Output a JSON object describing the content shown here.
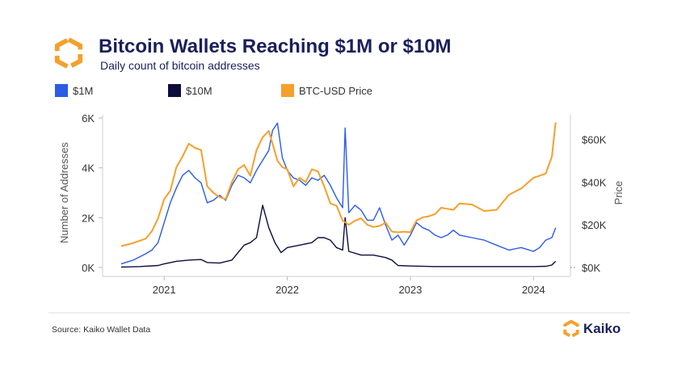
{
  "header": {
    "title": "Bitcoin Wallets Reaching $1M or $10M",
    "subtitle": "Daily count of bitcoin addresses"
  },
  "footer": {
    "source": "Source: Kaiko Wallet Data",
    "brand": "Kaiko"
  },
  "icons": {
    "logo": "kaiko-hexagon-logo-icon"
  },
  "colors": {
    "m1": "#2b5ce6",
    "m10": "#0d0d3d",
    "price": "#f5a02c",
    "title": "#1a1f5c"
  },
  "chart_data": {
    "type": "line",
    "title": "Bitcoin Wallets Reaching $1M or $10M",
    "subtitle": "Daily count of bitcoin addresses",
    "ylabel": "Number of Addresses",
    "y2label": "Price",
    "ylim": [
      0,
      6000
    ],
    "y2lim": [
      0,
      70000
    ],
    "yticks": [
      "0K",
      "2K",
      "4K",
      "6K"
    ],
    "y2ticks": [
      "$0K",
      "$20K",
      "$40K",
      "$60K"
    ],
    "xticks": [
      "2021",
      "2022",
      "2023",
      "2024"
    ],
    "xlim": [
      2020.5,
      2024.3
    ],
    "legend_position": "top-left",
    "grid": false,
    "series": [
      {
        "name": "$1M",
        "axis": "left",
        "x": [
          2020.65,
          2020.75,
          2020.85,
          2020.9,
          2020.95,
          2021.0,
          2021.05,
          2021.1,
          2021.15,
          2021.2,
          2021.25,
          2021.3,
          2021.35,
          2021.4,
          2021.45,
          2021.5,
          2021.55,
          2021.6,
          2021.65,
          2021.7,
          2021.75,
          2021.8,
          2021.85,
          2021.88,
          2021.92,
          2021.96,
          2022.0,
          2022.05,
          2022.1,
          2022.15,
          2022.2,
          2022.25,
          2022.3,
          2022.35,
          2022.4,
          2022.45,
          2022.47,
          2022.5,
          2022.55,
          2022.6,
          2022.65,
          2022.7,
          2022.75,
          2022.8,
          2022.85,
          2022.9,
          2022.95,
          2023.0,
          2023.05,
          2023.1,
          2023.15,
          2023.2,
          2023.25,
          2023.3,
          2023.35,
          2023.4,
          2023.5,
          2023.6,
          2023.7,
          2023.8,
          2023.9,
          2024.0,
          2024.05,
          2024.1,
          2024.15,
          2024.18
        ],
        "values": [
          150,
          300,
          550,
          700,
          1000,
          1800,
          2600,
          3200,
          3700,
          3900,
          3600,
          3400,
          2600,
          2700,
          2900,
          2700,
          3300,
          3700,
          3600,
          3400,
          3900,
          4300,
          4700,
          5500,
          5800,
          4400,
          3900,
          3600,
          3500,
          3300,
          3600,
          3500,
          3700,
          3300,
          2800,
          2400,
          5600,
          2200,
          2500,
          2300,
          1900,
          1900,
          2400,
          1700,
          1100,
          1300,
          900,
          1300,
          1800,
          1600,
          1500,
          1300,
          1200,
          1300,
          1500,
          1300,
          1200,
          1100,
          900,
          700,
          800,
          650,
          800,
          1100,
          1200,
          1600
        ]
      },
      {
        "name": "$10M",
        "axis": "left",
        "x": [
          2020.65,
          2020.8,
          2020.95,
          2021.0,
          2021.1,
          2021.2,
          2021.3,
          2021.35,
          2021.45,
          2021.55,
          2021.65,
          2021.7,
          2021.75,
          2021.8,
          2021.85,
          2021.9,
          2021.95,
          2022.0,
          2022.1,
          2022.2,
          2022.25,
          2022.3,
          2022.35,
          2022.4,
          2022.45,
          2022.47,
          2022.5,
          2022.6,
          2022.7,
          2022.8,
          2022.85,
          2022.9,
          2023.0,
          2023.2,
          2023.4,
          2023.6,
          2023.8,
          2024.0,
          2024.1,
          2024.15,
          2024.18
        ],
        "values": [
          20,
          40,
          80,
          150,
          250,
          300,
          320,
          200,
          180,
          300,
          900,
          1000,
          1200,
          2500,
          1600,
          1000,
          600,
          800,
          900,
          1000,
          1200,
          1200,
          1100,
          800,
          700,
          2000,
          650,
          500,
          500,
          400,
          300,
          80,
          60,
          40,
          40,
          40,
          40,
          40,
          50,
          100,
          250
        ]
      },
      {
        "name": "BTC-USD Price",
        "axis": "right",
        "x": [
          2020.65,
          2020.75,
          2020.85,
          2020.9,
          2020.95,
          2021.0,
          2021.05,
          2021.1,
          2021.15,
          2021.2,
          2021.25,
          2021.3,
          2021.35,
          2021.4,
          2021.45,
          2021.5,
          2021.55,
          2021.6,
          2021.65,
          2021.7,
          2021.75,
          2021.8,
          2021.85,
          2021.88,
          2021.92,
          2021.96,
          2022.0,
          2022.05,
          2022.1,
          2022.15,
          2022.2,
          2022.25,
          2022.3,
          2022.35,
          2022.4,
          2022.45,
          2022.5,
          2022.55,
          2022.6,
          2022.65,
          2022.7,
          2022.75,
          2022.8,
          2022.85,
          2022.9,
          2022.95,
          2023.0,
          2023.05,
          2023.1,
          2023.15,
          2023.2,
          2023.25,
          2023.3,
          2023.35,
          2023.4,
          2023.5,
          2023.6,
          2023.7,
          2023.8,
          2023.9,
          2024.0,
          2024.05,
          2024.1,
          2024.15,
          2024.18
        ],
        "values": [
          10000,
          11500,
          13500,
          17000,
          23000,
          32000,
          36000,
          47000,
          52000,
          58000,
          56000,
          55000,
          38000,
          35000,
          33000,
          32000,
          40000,
          46000,
          48000,
          43000,
          55000,
          61000,
          64000,
          58000,
          50000,
          47000,
          46000,
          38000,
          42000,
          40000,
          46000,
          45000,
          38000,
          30000,
          29000,
          22000,
          20000,
          22000,
          23000,
          20000,
          19000,
          19500,
          21000,
          16800,
          16500,
          16800,
          16500,
          22000,
          23500,
          24000,
          25000,
          28000,
          27500,
          27000,
          30000,
          29500,
          26500,
          27000,
          34000,
          37000,
          42000,
          43000,
          44000,
          52000,
          68000
        ]
      }
    ]
  }
}
